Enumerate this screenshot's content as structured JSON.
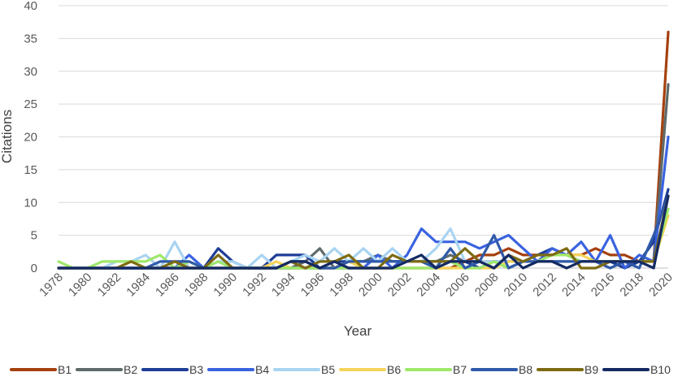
{
  "chart_data": {
    "type": "line",
    "title": "",
    "xlabel": "Year",
    "ylabel": "Citations",
    "xlim": [
      1978,
      2020
    ],
    "ylim": [
      0,
      40
    ],
    "yticks": [
      0,
      5,
      10,
      15,
      20,
      25,
      30,
      35,
      40
    ],
    "grid": "horizontal",
    "legend_position": "bottom",
    "x_tick_labels": [
      "1978",
      "1980",
      "1982",
      "1984",
      "1986",
      "1988",
      "1990",
      "1992",
      "1994",
      "1996",
      "1998",
      "2000",
      "2002",
      "2004",
      "2006",
      "2008",
      "2010",
      "2012",
      "2014",
      "2016",
      "2018",
      "2020"
    ],
    "x": [
      1978,
      1979,
      1980,
      1981,
      1982,
      1983,
      1984,
      1985,
      1986,
      1987,
      1988,
      1989,
      1990,
      1991,
      1992,
      1993,
      1994,
      1995,
      1996,
      1997,
      1998,
      1999,
      2000,
      2001,
      2002,
      2003,
      2004,
      2005,
      2006,
      2007,
      2008,
      2009,
      2010,
      2011,
      2012,
      2013,
      2014,
      2015,
      2016,
      2017,
      2018,
      2019,
      2020
    ],
    "series": [
      {
        "name": "B1",
        "color": "#a5400f",
        "values": [
          0,
          0,
          0,
          0,
          0,
          0,
          0,
          0,
          0,
          0,
          0,
          0,
          0,
          0,
          0,
          0,
          0,
          0,
          0,
          0,
          0,
          0,
          0,
          0,
          0,
          0,
          0,
          0,
          1,
          2,
          2,
          3,
          2,
          2,
          2,
          2,
          2,
          3,
          2,
          2,
          1,
          1,
          36
        ]
      },
      {
        "name": "B2",
        "color": "#5f6b6b",
        "values": [
          0,
          0,
          0,
          0,
          0,
          0,
          0,
          0,
          0,
          0,
          0,
          0,
          0,
          0,
          0,
          0,
          0,
          1,
          3,
          0,
          1,
          1,
          2,
          1,
          1,
          1,
          1,
          2,
          1,
          1,
          1,
          0,
          1,
          1,
          1,
          1,
          1,
          1,
          1,
          1,
          1,
          1,
          28
        ]
      },
      {
        "name": "B3",
        "color": "#1d3d96",
        "values": [
          0,
          0,
          0,
          0,
          0,
          0,
          0,
          0,
          0,
          0,
          0,
          3,
          1,
          0,
          0,
          2,
          2,
          2,
          0,
          1,
          1,
          1,
          1,
          1,
          1,
          1,
          1,
          1,
          1,
          0,
          1,
          1,
          1,
          2,
          3,
          2,
          1,
          1,
          1,
          0,
          1,
          4,
          12
        ]
      },
      {
        "name": "B4",
        "color": "#3a63e0",
        "values": [
          0,
          0,
          0,
          0,
          0,
          0,
          0,
          0,
          0,
          2,
          0,
          1,
          0,
          0,
          0,
          0,
          0,
          0,
          0,
          0,
          0,
          0,
          2,
          0,
          2,
          6,
          4,
          4,
          4,
          3,
          4,
          5,
          3,
          1,
          3,
          2,
          4,
          1,
          5,
          0,
          2,
          1,
          20
        ]
      },
      {
        "name": "B5",
        "color": "#a9d4f2",
        "values": [
          0,
          0,
          0,
          0,
          1,
          1,
          2,
          0,
          4,
          0,
          0,
          1,
          1,
          0,
          2,
          0,
          1,
          2,
          1,
          3,
          1,
          3,
          1,
          3,
          1,
          1,
          3,
          6,
          1,
          1,
          1,
          1,
          1,
          1,
          1,
          1,
          1,
          1,
          1,
          1,
          1,
          1,
          9
        ]
      },
      {
        "name": "B6",
        "color": "#f5d35a",
        "values": [
          0,
          0,
          0,
          0,
          0,
          1,
          0,
          0,
          0,
          0,
          0,
          0,
          0,
          0,
          0,
          1,
          0,
          0,
          0,
          0,
          1,
          0,
          0,
          0,
          0,
          0,
          0,
          0,
          0,
          0,
          0,
          1,
          1,
          1,
          2,
          2,
          2,
          1,
          1,
          1,
          1,
          1,
          8
        ]
      },
      {
        "name": "B7",
        "color": "#9ee86b",
        "values": [
          1,
          0,
          0,
          1,
          1,
          1,
          1,
          2,
          0,
          1,
          0,
          1,
          0,
          0,
          0,
          0,
          0,
          0,
          0,
          0,
          0,
          0,
          0,
          0,
          0,
          0,
          0,
          1,
          0,
          0,
          1,
          0,
          1,
          1,
          2,
          2,
          1,
          1,
          1,
          1,
          1,
          1,
          9
        ]
      },
      {
        "name": "B8",
        "color": "#2f5aa8",
        "values": [
          0,
          0,
          0,
          0,
          0,
          0,
          0,
          1,
          1,
          1,
          0,
          0,
          0,
          0,
          0,
          0,
          1,
          1,
          0,
          0,
          1,
          1,
          1,
          1,
          1,
          1,
          0,
          3,
          0,
          1,
          5,
          0,
          1,
          1,
          1,
          1,
          1,
          1,
          0,
          1,
          0,
          5,
          11
        ]
      },
      {
        "name": "B9",
        "color": "#7d6b12",
        "values": [
          0,
          0,
          0,
          0,
          0,
          1,
          0,
          0,
          1,
          0,
          0,
          2,
          0,
          0,
          0,
          0,
          1,
          0,
          1,
          1,
          2,
          0,
          0,
          2,
          1,
          1,
          1,
          1,
          3,
          1,
          0,
          2,
          1,
          2,
          2,
          3,
          0,
          0,
          1,
          1,
          1,
          1,
          11
        ]
      },
      {
        "name": "B10",
        "color": "#142a63",
        "values": [
          0,
          0,
          0,
          0,
          0,
          0,
          0,
          0,
          0,
          0,
          0,
          0,
          0,
          0,
          0,
          0,
          1,
          1,
          0,
          1,
          0,
          0,
          0,
          0,
          1,
          2,
          0,
          1,
          1,
          1,
          0,
          2,
          0,
          1,
          1,
          0,
          1,
          1,
          1,
          1,
          1,
          0,
          11
        ]
      }
    ]
  }
}
